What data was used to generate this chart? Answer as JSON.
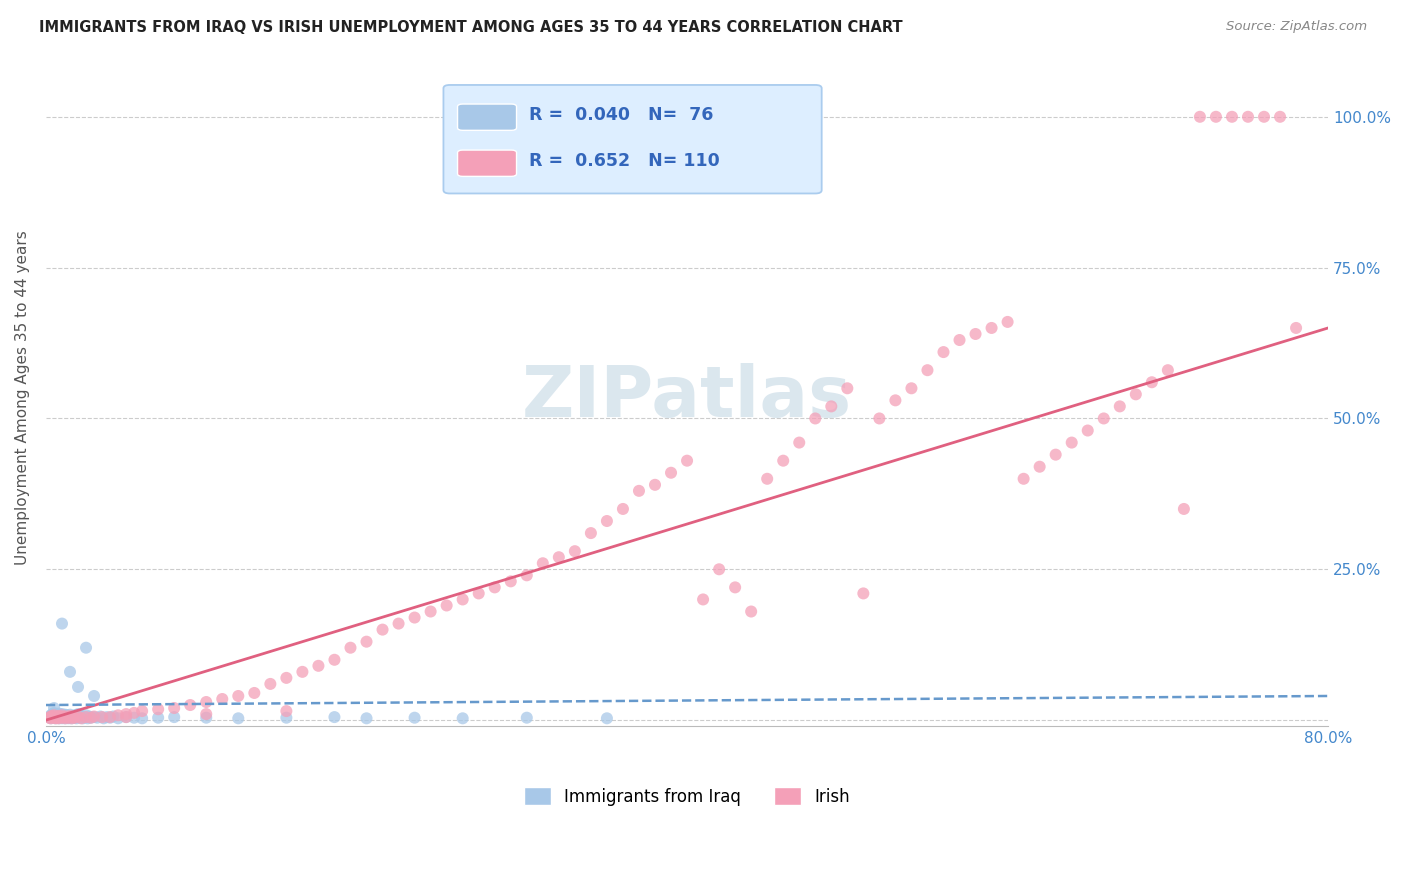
{
  "title": "IMMIGRANTS FROM IRAQ VS IRISH UNEMPLOYMENT AMONG AGES 35 TO 44 YEARS CORRELATION CHART",
  "source": "Source: ZipAtlas.com",
  "ylabel": "Unemployment Among Ages 35 to 44 years",
  "xlim": [
    0.0,
    0.8
  ],
  "ylim": [
    -0.01,
    1.08
  ],
  "R1": "0.040",
  "N1": "76",
  "R2": "0.652",
  "N2": "110",
  "color_iraq": "#a8c8e8",
  "color_irish": "#f4a0b8",
  "color_iraq_line": "#6699cc",
  "color_irish_line": "#e06080",
  "color_axis_labels": "#4488cc",
  "color_title": "#222222",
  "watermark_color": "#ccdde8",
  "background_color": "#ffffff",
  "grid_color": "#cccccc",
  "legend_label1": "Immigrants from Iraq",
  "legend_label2": "Irish",
  "irish_line_x0": 0.0,
  "irish_line_y0": 0.0,
  "irish_line_x1": 0.8,
  "irish_line_y1": 0.65,
  "iraq_line_x0": 0.0,
  "iraq_line_y0": 0.025,
  "iraq_line_x1": 0.8,
  "iraq_line_y1": 0.04
}
